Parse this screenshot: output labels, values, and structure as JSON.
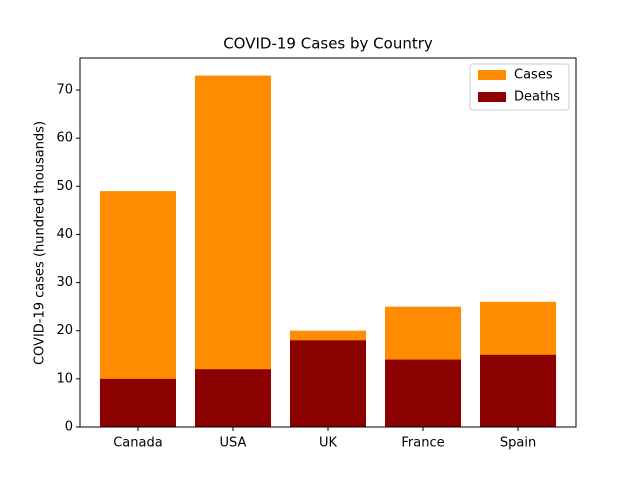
{
  "chart_data": {
    "type": "bar",
    "title": "COVID-19 Cases by Country",
    "y_label": "COVID-19 cases (hundred thousands)",
    "categories": [
      "Canada",
      "USA",
      "UK",
      "France",
      "Spain"
    ],
    "series": [
      {
        "name": "Cases",
        "color": "#ff8c00",
        "values": [
          49,
          73,
          20,
          25,
          26
        ]
      },
      {
        "name": "Deaths",
        "color": "#8b0000",
        "values": [
          10,
          12,
          18,
          14,
          15
        ]
      }
    ],
    "ylim": [
      0,
      76.65
    ],
    "yticks": [
      0,
      10,
      20,
      30,
      40,
      50,
      60,
      70
    ],
    "legend": "upper right"
  }
}
